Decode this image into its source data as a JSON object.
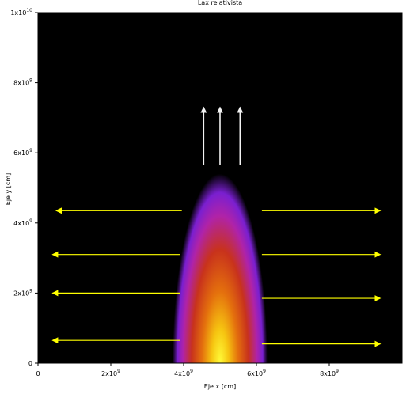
{
  "chart_data": {
    "type": "heatmap",
    "title": "Lax relativista",
    "xlabel": "Eje x [cm]",
    "ylabel": "Eje y [cm]",
    "xlim": [
      0,
      10000000000
    ],
    "ylim": [
      0,
      10000000000
    ],
    "background_color": "#000000",
    "colormap": [
      "#000000",
      "#7a1fd0",
      "#b023a8",
      "#c8321c",
      "#e4700d",
      "#f6c511",
      "#fffc3a"
    ],
    "x_ticks": [
      {
        "value": 0,
        "mantissa": "0",
        "exponent": ""
      },
      {
        "value": 2000000000,
        "mantissa": "2x10",
        "exponent": "9"
      },
      {
        "value": 4000000000,
        "mantissa": "4x10",
        "exponent": "9"
      },
      {
        "value": 6000000000,
        "mantissa": "6x10",
        "exponent": "9"
      },
      {
        "value": 8000000000,
        "mantissa": "8x10",
        "exponent": "9"
      }
    ],
    "y_ticks": [
      {
        "value": 0,
        "mantissa": "0",
        "exponent": ""
      },
      {
        "value": 2000000000,
        "mantissa": "2x10",
        "exponent": "9"
      },
      {
        "value": 4000000000,
        "mantissa": "4x10",
        "exponent": "9"
      },
      {
        "value": 6000000000,
        "mantissa": "6x10",
        "exponent": "9"
      },
      {
        "value": 8000000000,
        "mantissa": "8x10",
        "exponent": "9"
      },
      {
        "value": 10000000000,
        "mantissa": "1x10",
        "exponent": "10"
      }
    ],
    "jet": {
      "center_x": 5000000000,
      "half_width": 1300000000,
      "height": 5400000000,
      "color": "intensity colormap"
    },
    "arrow_color_yellow": "#ffff00",
    "arrow_color_white": "#f2f2f2",
    "arrows": [
      {
        "color": "white",
        "x0": 4550000000,
        "y0": 5650000000,
        "x1": 4550000000,
        "y1": 7300000000
      },
      {
        "color": "white",
        "x0": 5000000000,
        "y0": 5650000000,
        "x1": 5000000000,
        "y1": 7300000000
      },
      {
        "color": "white",
        "x0": 5550000000,
        "y0": 5650000000,
        "x1": 5550000000,
        "y1": 7300000000
      },
      {
        "color": "yellow",
        "x0": 3950000000,
        "y0": 4350000000,
        "x1": 500000000,
        "y1": 4350000000
      },
      {
        "color": "yellow",
        "x0": 6150000000,
        "y0": 4350000000,
        "x1": 9400000000,
        "y1": 4350000000
      },
      {
        "color": "yellow",
        "x0": 3900000000,
        "y0": 3100000000,
        "x1": 400000000,
        "y1": 3100000000
      },
      {
        "color": "yellow",
        "x0": 6150000000,
        "y0": 3100000000,
        "x1": 9400000000,
        "y1": 3100000000
      },
      {
        "color": "yellow",
        "x0": 3900000000,
        "y0": 2000000000,
        "x1": 400000000,
        "y1": 2000000000
      },
      {
        "color": "yellow",
        "x0": 6150000000,
        "y0": 1850000000,
        "x1": 9400000000,
        "y1": 1850000000
      },
      {
        "color": "yellow",
        "x0": 3900000000,
        "y0": 650000000,
        "x1": 400000000,
        "y1": 650000000
      },
      {
        "color": "yellow",
        "x0": 6150000000,
        "y0": 550000000,
        "x1": 9400000000,
        "y1": 550000000
      }
    ]
  }
}
